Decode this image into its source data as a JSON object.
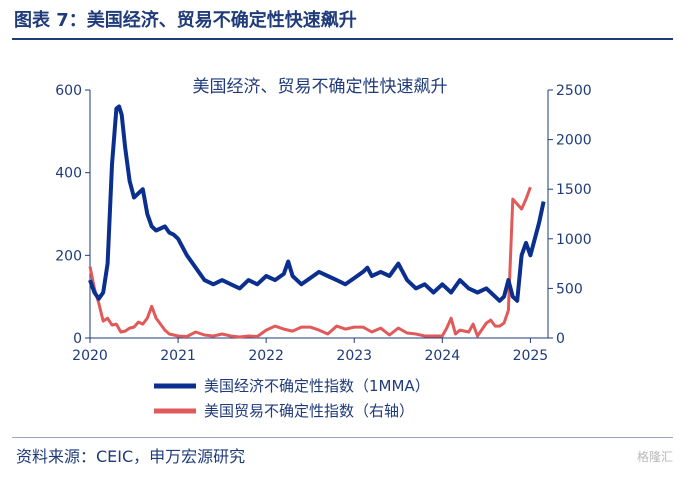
{
  "figure": {
    "title": "图表 7：美国经济、贸易不确定性快速飙升",
    "source": "资料来源：CEIC，申万宏源研究",
    "watermark": "格隆汇"
  },
  "chart_data": {
    "type": "line",
    "title": "美国经济、贸易不确定性快速飙升",
    "x_ticks": [
      "2020",
      "2021",
      "2022",
      "2023",
      "2024",
      "2025"
    ],
    "xlim": [
      2020.0,
      2025.2
    ],
    "y_left": {
      "ticks": [
        "0",
        "200",
        "400",
        "600"
      ],
      "lim": [
        0,
        600
      ]
    },
    "y_right": {
      "ticks": [
        "0",
        "500",
        "1000",
        "1500",
        "2000",
        "2500"
      ],
      "lim": [
        0,
        2500
      ]
    },
    "legend_position": "bottom",
    "colors": {
      "economic": "#0b2f8f",
      "trade": "#e05a5a"
    },
    "series": [
      {
        "name": "美国经济不确定性指数（1MMA）",
        "axis": "left",
        "x": [
          2020.0,
          2020.05,
          2020.1,
          2020.15,
          2020.2,
          2020.25,
          2020.3,
          2020.33,
          2020.36,
          2020.4,
          2020.45,
          2020.5,
          2020.55,
          2020.6,
          2020.65,
          2020.7,
          2020.75,
          2020.8,
          2020.85,
          2020.9,
          2020.95,
          2021.0,
          2021.1,
          2021.2,
          2021.3,
          2021.4,
          2021.5,
          2021.6,
          2021.7,
          2021.8,
          2021.9,
          2022.0,
          2022.1,
          2022.2,
          2022.25,
          2022.3,
          2022.4,
          2022.5,
          2022.6,
          2022.7,
          2022.8,
          2022.9,
          2023.0,
          2023.1,
          2023.15,
          2023.2,
          2023.3,
          2023.4,
          2023.45,
          2023.5,
          2023.6,
          2023.7,
          2023.8,
          2023.9,
          2024.0,
          2024.1,
          2024.2,
          2024.3,
          2024.4,
          2024.5,
          2024.6,
          2024.65,
          2024.7,
          2024.75,
          2024.8,
          2024.85,
          2024.9,
          2024.95,
          2025.0,
          2025.05,
          2025.1,
          2025.15
        ],
        "y": [
          140,
          110,
          95,
          110,
          180,
          420,
          555,
          560,
          540,
          460,
          380,
          340,
          350,
          360,
          300,
          270,
          260,
          265,
          270,
          255,
          250,
          240,
          200,
          170,
          140,
          130,
          140,
          130,
          120,
          140,
          130,
          150,
          140,
          155,
          185,
          150,
          130,
          145,
          160,
          150,
          140,
          130,
          145,
          160,
          170,
          150,
          160,
          150,
          165,
          180,
          140,
          120,
          130,
          110,
          130,
          110,
          140,
          120,
          110,
          120,
          100,
          90,
          100,
          140,
          100,
          90,
          200,
          230,
          200,
          240,
          280,
          330
        ]
      },
      {
        "name": "美国贸易不确定性指数（右轴）",
        "axis": "right",
        "x": [
          2020.0,
          2020.05,
          2020.1,
          2020.15,
          2020.2,
          2020.25,
          2020.3,
          2020.35,
          2020.4,
          2020.45,
          2020.5,
          2020.55,
          2020.6,
          2020.65,
          2020.7,
          2020.75,
          2020.8,
          2020.85,
          2020.9,
          2021.0,
          2021.1,
          2021.2,
          2021.3,
          2021.4,
          2021.5,
          2021.6,
          2021.7,
          2021.8,
          2021.9,
          2022.0,
          2022.1,
          2022.2,
          2022.3,
          2022.4,
          2022.5,
          2022.6,
          2022.7,
          2022.8,
          2022.9,
          2023.0,
          2023.1,
          2023.2,
          2023.3,
          2023.4,
          2023.5,
          2023.6,
          2023.7,
          2023.8,
          2023.9,
          2024.0,
          2024.05,
          2024.1,
          2024.15,
          2024.2,
          2024.3,
          2024.35,
          2024.4,
          2024.5,
          2024.55,
          2024.6,
          2024.65,
          2024.7,
          2024.75,
          2024.8,
          2024.85,
          2024.9,
          2024.95,
          2025.0
        ],
        "y": [
          720,
          500,
          350,
          170,
          200,
          130,
          140,
          60,
          70,
          100,
          110,
          160,
          140,
          200,
          320,
          200,
          140,
          80,
          40,
          20,
          15,
          60,
          30,
          20,
          40,
          20,
          10,
          20,
          15,
          80,
          120,
          90,
          70,
          110,
          110,
          80,
          40,
          120,
          90,
          110,
          110,
          60,
          100,
          30,
          100,
          50,
          40,
          20,
          20,
          20,
          100,
          200,
          40,
          80,
          60,
          140,
          20,
          150,
          180,
          120,
          120,
          150,
          280,
          1400,
          1350,
          1300,
          1400,
          1520
        ]
      }
    ]
  }
}
